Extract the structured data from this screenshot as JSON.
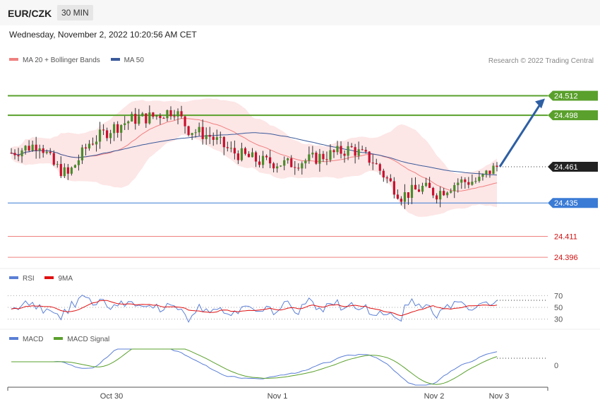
{
  "header": {
    "symbol": "EUR/CZK",
    "timeframe": "30 MIN"
  },
  "datetime": "Wednesday, November 2, 2022 10:20:56 AM CET",
  "credit": "Research © 2022 Trading Central",
  "colors": {
    "bullish": "#4a8c2a",
    "bearish": "#c8102e",
    "ma20": "#f08080",
    "ma50": "#3a5a9a",
    "bands": "#fde2e2",
    "resistance": "#5aa02c",
    "support": "#3a7bd5",
    "support_weak": "#f08080",
    "price": "#222222",
    "rsi": "#5b7fd6",
    "rsi_ma": "#e01010",
    "macd": "#5b7fd6",
    "macd_signal": "#5aa02c",
    "arrow": "#2e5fa3"
  },
  "chart_data": [
    {
      "type": "candlestick",
      "legend": [
        "MA 20 + Bollinger Bands",
        "MA 50"
      ],
      "x_labels": [
        "Oct 30",
        "Nov 1",
        "Nov 2",
        "Nov 3"
      ],
      "ylim": [
        24.392,
        24.53
      ],
      "levels": [
        {
          "value": 24.512,
          "label": "24.512",
          "kind": "resistance"
        },
        {
          "value": 24.498,
          "label": "24.498",
          "kind": "resistance"
        },
        {
          "value": 24.461,
          "label": "24.461",
          "kind": "last"
        },
        {
          "value": 24.435,
          "label": "24.435",
          "kind": "support"
        },
        {
          "value": 24.411,
          "label": "24.411",
          "kind": "support_weak"
        },
        {
          "value": 24.396,
          "label": "24.396",
          "kind": "support_weak"
        }
      ],
      "forecast": {
        "from": 24.461,
        "to": 24.512
      }
    },
    {
      "type": "line",
      "name": "RSI",
      "legend": [
        "RSI",
        "9MA"
      ],
      "yticks": [
        "70",
        "50",
        "30"
      ],
      "ylim": [
        20,
        80
      ]
    },
    {
      "type": "line",
      "name": "MACD",
      "legend": [
        "MACD",
        "MACD Signal"
      ],
      "yticks": [
        "0"
      ]
    }
  ]
}
